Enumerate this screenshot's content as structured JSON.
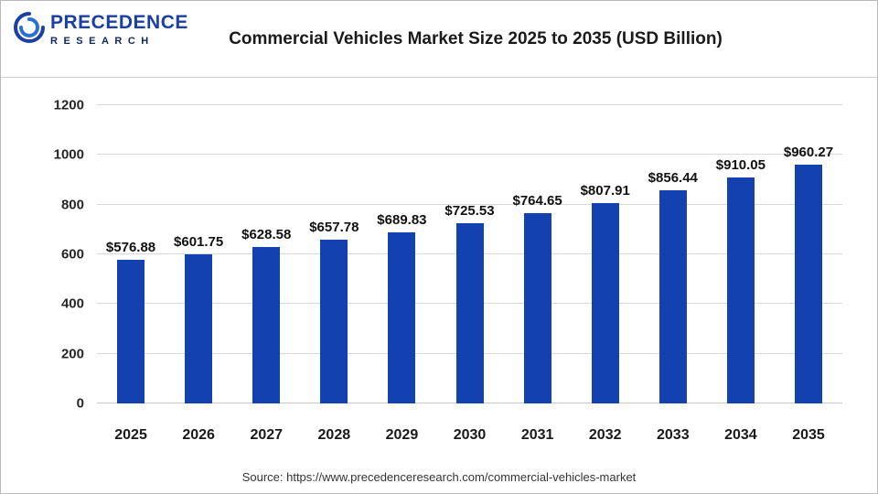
{
  "header": {
    "logo_line1": "PRECEDENCE",
    "logo_line2": "RESEARCH",
    "title": "Commercial Vehicles Market Size 2025 to 2035 (USD Billion)"
  },
  "chart_data": {
    "type": "bar",
    "title": "Commercial Vehicles Market Size 2025 to 2035 (USD Billion)",
    "categories": [
      "2025",
      "2026",
      "2027",
      "2028",
      "2029",
      "2030",
      "2031",
      "2032",
      "2033",
      "2034",
      "2035"
    ],
    "values": [
      576.88,
      601.75,
      628.58,
      657.78,
      689.83,
      725.53,
      764.65,
      807.91,
      856.44,
      910.05,
      960.27
    ],
    "value_labels": [
      "$576.88",
      "$601.75",
      "$628.58",
      "$657.78",
      "$689.83",
      "$725.53",
      "$764.65",
      "$807.91",
      "$856.44",
      "$910.05",
      "$960.27"
    ],
    "xlabel": "",
    "ylabel": "",
    "ylim": [
      0,
      1200
    ],
    "yticks": [
      0,
      200,
      400,
      600,
      800,
      1000,
      1200
    ],
    "grid": true,
    "legend": "none",
    "bar_color": "#1341b0"
  },
  "footer": {
    "source": "Source: https://www.precedenceresearch.com/commercial-vehicles-market"
  }
}
